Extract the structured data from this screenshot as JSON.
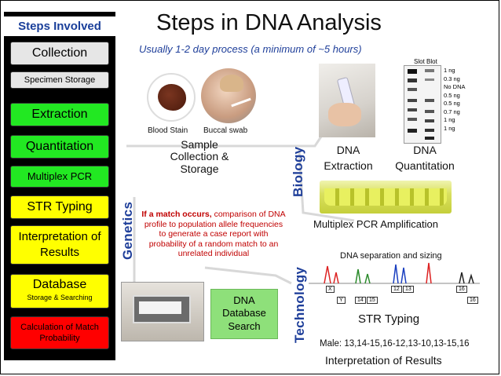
{
  "sidebar": {
    "title": "Steps Involved",
    "steps": [
      {
        "label": "Collection",
        "sub": "",
        "color": "#e6e6e6"
      },
      {
        "label": "Specimen Storage",
        "sub": "",
        "color": "#e6e6e6"
      },
      {
        "label": "Extraction",
        "sub": "",
        "color": "#22e822"
      },
      {
        "label": "Quantitation",
        "sub": "",
        "color": "#22e822"
      },
      {
        "label": "Multiplex PCR",
        "sub": "",
        "color": "#22e822"
      },
      {
        "label": "STR Typing",
        "sub": "",
        "color": "#ffff00"
      },
      {
        "label": "Interpretation of Results",
        "sub": "",
        "color": "#ffff00"
      },
      {
        "label": "Database",
        "sub": "Storage & Searching",
        "color": "#ffff00"
      },
      {
        "label": "Calculation of Match Probability",
        "sub": "",
        "color": "#ff0000"
      }
    ]
  },
  "header": {
    "title": "Steps in DNA Analysis",
    "subtitle": "Usually 1-2 day process (a minimum of ~5 hours)"
  },
  "collection": {
    "blood_label": "Blood Stain",
    "buccal_label": "Buccal swab",
    "caption": "Sample Collection & Storage"
  },
  "extraction": {
    "caption": "DNA Extraction"
  },
  "quantitation": {
    "caption": "DNA Quantitation",
    "blot_title": "Slot Blot",
    "blot_labels": [
      "1 ng",
      "0.3 ng",
      "No DNA",
      "0.5 ng",
      "0.5 ng",
      "0.7 ng",
      "1 ng",
      "1 ng"
    ]
  },
  "pcr": {
    "caption": "Multiplex PCR Amplification"
  },
  "sections": {
    "biology": "Biology",
    "genetics": "Genetics",
    "technology": "Technology"
  },
  "match": {
    "lead": "If a match occurs,",
    "text": "comparison of DNA profile to population allele frequencies to generate a case report with probability of a random match to an unrelated individual"
  },
  "database": {
    "caption": "DNA Database Search"
  },
  "str": {
    "separation_label": "DNA separation and sizing",
    "caption": "STR Typing",
    "alleles_top": [
      "X",
      "12",
      "13",
      "16"
    ],
    "alleles_bottom": [
      "Y",
      "14",
      "15",
      "16"
    ],
    "male_line": "Male: 13,14-15,16-12,13-10,13-15,16",
    "interp": "Interpretation of Results"
  }
}
